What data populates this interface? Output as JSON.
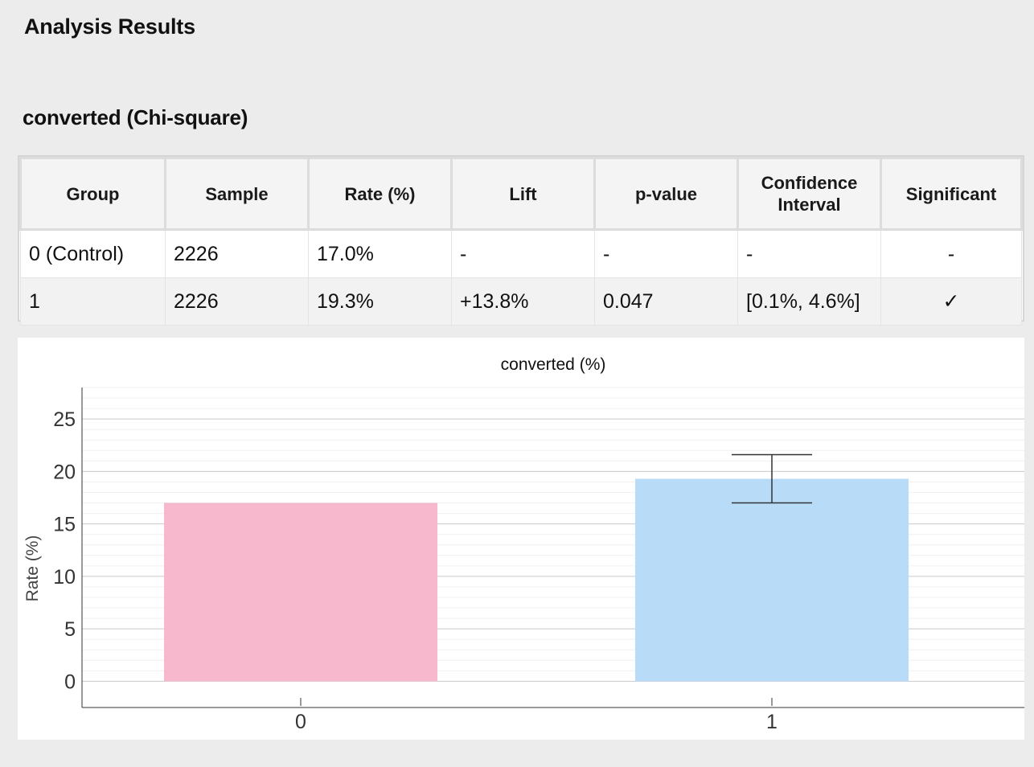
{
  "page": {
    "title": "Analysis Results"
  },
  "section": {
    "title": "converted (Chi-square)"
  },
  "table": {
    "headers": [
      "Group",
      "Sample",
      "Rate (%)",
      "Lift",
      "p-value",
      "Confidence Interval",
      "Significant"
    ],
    "rows": [
      {
        "group": "0 (Control)",
        "sample": "2226",
        "rate": "17.0%",
        "lift": "-",
        "p_value": "-",
        "ci": "-",
        "significant": "-"
      },
      {
        "group": "1",
        "sample": "2226",
        "rate": "19.3%",
        "lift": "+13.8%",
        "p_value": "0.047",
        "ci": "[0.1%, 4.6%]",
        "significant": "✓"
      }
    ]
  },
  "chart_data": {
    "type": "bar",
    "title": "converted (%)",
    "xlabel": "",
    "ylabel": "Rate (%)",
    "categories": [
      "0",
      "1"
    ],
    "values": [
      17.0,
      19.3
    ],
    "error_bars": [
      null,
      {
        "low": 17.0,
        "high": 21.6
      }
    ],
    "colors": [
      "#f7b8ce",
      "#b8dcf7"
    ],
    "ylim": [
      -2.5,
      28
    ],
    "yticks": [
      0,
      5,
      10,
      15,
      20,
      25
    ],
    "grid": true
  }
}
